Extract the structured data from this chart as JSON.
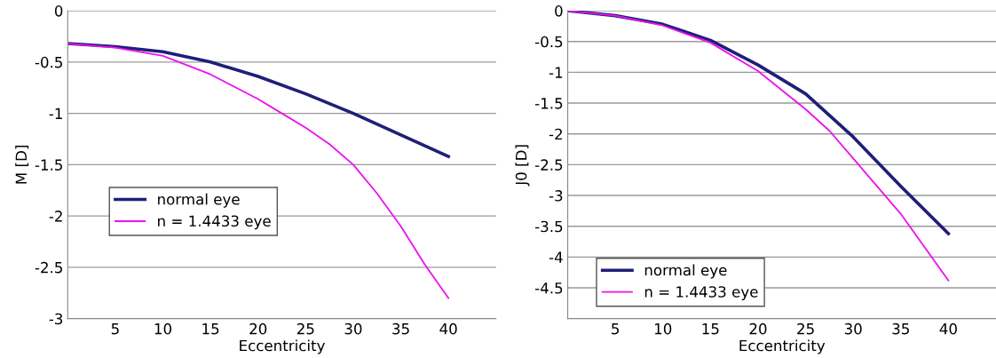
{
  "chart_data": [
    {
      "type": "line",
      "xlabel": "Eccentricity",
      "ylabel": "M [D]",
      "xlim": [
        0,
        45
      ],
      "xticks": [
        5,
        10,
        15,
        20,
        25,
        30,
        35,
        40
      ],
      "ylim": [
        -3,
        0
      ],
      "yticks": [
        0,
        -0.5,
        -1,
        -1.5,
        -2,
        -2.5,
        -3
      ],
      "grid": "y",
      "legend": "center left",
      "series": [
        {
          "name": "normal eye",
          "color": "#1f1f78",
          "x": [
            0,
            5,
            10,
            15,
            20,
            25,
            30,
            35,
            40
          ],
          "values": [
            -0.32,
            -0.35,
            -0.4,
            -0.5,
            -0.64,
            -0.81,
            -1.0,
            -1.21,
            -1.42
          ]
        },
        {
          "name": "n = 1.4433 eye",
          "color": "#ee10ee",
          "x": [
            0,
            5,
            10,
            15,
            20,
            22.5,
            25,
            27.5,
            30,
            32.5,
            35,
            37.5,
            40
          ],
          "values": [
            -0.32,
            -0.36,
            -0.44,
            -0.62,
            -0.86,
            -1.0,
            -1.14,
            -1.3,
            -1.5,
            -1.78,
            -2.1,
            -2.47,
            -2.8
          ]
        }
      ]
    },
    {
      "type": "line",
      "xlabel": "Eccentricity",
      "ylabel": "J0 [D]",
      "xlim": [
        0,
        45
      ],
      "xticks": [
        5,
        10,
        15,
        20,
        25,
        30,
        35,
        40
      ],
      "ylim": [
        -5,
        0
      ],
      "yticks": [
        0,
        -0.5,
        -1,
        -1.5,
        -2,
        -2.5,
        -3,
        -3.5,
        -4,
        -4.5
      ],
      "grid": "y",
      "legend": "bottom left",
      "series": [
        {
          "name": "normal eye",
          "color": "#1f1f78",
          "x": [
            0,
            5,
            10,
            15,
            20,
            25,
            30,
            35,
            40
          ],
          "values": [
            0,
            -0.08,
            -0.22,
            -0.48,
            -0.88,
            -1.35,
            -2.05,
            -2.85,
            -3.62
          ]
        },
        {
          "name": "n = 1.4433 eye",
          "color": "#ee10ee",
          "x": [
            0,
            5,
            10,
            15,
            20,
            25,
            27.5,
            30,
            35,
            40
          ],
          "values": [
            0,
            -0.08,
            -0.24,
            -0.52,
            -0.98,
            -1.6,
            -1.95,
            -2.4,
            -3.3,
            -4.38
          ]
        }
      ]
    }
  ]
}
